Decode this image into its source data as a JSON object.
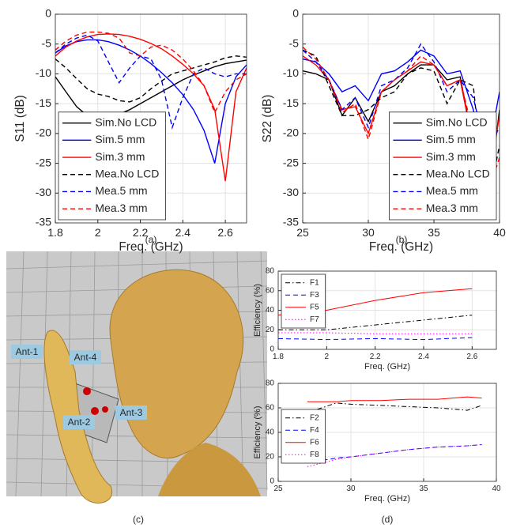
{
  "chart_data": [
    {
      "type": "line",
      "caption": "(a)",
      "xlabel": "Freq. (GHz)",
      "ylabel": "S11 (dB)",
      "x": [
        1.8,
        1.85,
        1.9,
        1.95,
        2.0,
        2.05,
        2.1,
        2.15,
        2.2,
        2.25,
        2.3,
        2.35,
        2.4,
        2.45,
        2.5,
        2.55,
        2.6,
        2.65,
        2.7
      ],
      "xlim": [
        1.8,
        2.7
      ],
      "xticks": [
        1.8,
        2,
        2.2,
        2.4,
        2.6
      ],
      "ylim": [
        -35,
        0
      ],
      "yticks": [
        -35,
        -30,
        -25,
        -20,
        -15,
        -10,
        -5,
        0
      ],
      "grid": true,
      "legend_loc": "lower left",
      "series": [
        {
          "name": "Sim.No LCD",
          "color": "#000000",
          "linestyle": "solid",
          "values": [
            -10.5,
            -13,
            -15.5,
            -17,
            -17.5,
            -17.3,
            -16.8,
            -16,
            -15,
            -14,
            -13,
            -12,
            -11,
            -10.2,
            -9.5,
            -8.8,
            -8.3,
            -8,
            -7.7
          ]
        },
        {
          "name": "Sim.5 mm",
          "color": "#0000ff",
          "linestyle": "solid",
          "values": [
            -6.5,
            -5.3,
            -4.6,
            -4.3,
            -4.3,
            -4.6,
            -5.2,
            -6,
            -7,
            -8.3,
            -9.8,
            -11.5,
            -13.5,
            -16,
            -19.5,
            -25,
            -15,
            -10.5,
            -8.5
          ]
        },
        {
          "name": "Sim.3 mm",
          "color": "#ff0000",
          "linestyle": "solid",
          "values": [
            -7,
            -5.5,
            -4.5,
            -3.8,
            -3.4,
            -3.3,
            -3.4,
            -3.7,
            -4.2,
            -4.9,
            -5.8,
            -7,
            -8.4,
            -10,
            -12,
            -16,
            -28,
            -13,
            -9
          ]
        },
        {
          "name": "Mea.No LCD",
          "color": "#000000",
          "linestyle": "dashed",
          "values": [
            -7.5,
            -9,
            -10.8,
            -12.5,
            -13.4,
            -13.8,
            -14.5,
            -14.7,
            -14,
            -12.5,
            -11.2,
            -10,
            -9.5,
            -9,
            -8.5,
            -8,
            -7.3,
            -7,
            -7.2
          ]
        },
        {
          "name": "Mea.5 mm",
          "color": "#0000ff",
          "linestyle": "dashed",
          "values": [
            -6.5,
            -5,
            -4,
            -3.5,
            -4.5,
            -8,
            -11.5,
            -9,
            -7,
            -7.5,
            -11,
            -19,
            -14,
            -10,
            -9,
            -10,
            -10.5,
            -10,
            -10
          ]
        },
        {
          "name": "Mea.3 mm",
          "color": "#ff0000",
          "linestyle": "dashed",
          "values": [
            -6,
            -4.5,
            -3.5,
            -3,
            -3,
            -3.2,
            -4,
            -6.5,
            -7,
            -5.5,
            -5.2,
            -6,
            -7.5,
            -9.5,
            -12,
            -16.5,
            -13,
            -11,
            -10
          ]
        }
      ]
    },
    {
      "type": "line",
      "caption": "(b)",
      "xlabel": "Freq. (GHz)",
      "ylabel": "S22 (dB)",
      "x": [
        25,
        26,
        27,
        28,
        29,
        30,
        31,
        32,
        33,
        34,
        35,
        36,
        37,
        38,
        39,
        40
      ],
      "xlim": [
        25,
        40
      ],
      "xticks": [
        25,
        30,
        35,
        40
      ],
      "ylim": [
        -35,
        0
      ],
      "yticks": [
        -35,
        -30,
        -25,
        -20,
        -15,
        -10,
        -5,
        0
      ],
      "grid": true,
      "legend_loc": "lower right",
      "series": [
        {
          "name": "Sim.No LCD",
          "color": "#000000",
          "linestyle": "solid",
          "values": [
            -9.5,
            -10,
            -11,
            -17,
            -14,
            -18,
            -13,
            -12,
            -10,
            -8.5,
            -8.5,
            -11,
            -10.5,
            -22,
            -34,
            -16
          ]
        },
        {
          "name": "Sim.5 mm",
          "color": "#0000ff",
          "linestyle": "solid",
          "values": [
            -7.5,
            -8,
            -10,
            -13,
            -12,
            -14.5,
            -10,
            -9.5,
            -8,
            -6,
            -7,
            -10,
            -9.5,
            -16,
            -25,
            -13
          ]
        },
        {
          "name": "Sim.3 mm",
          "color": "#ff0000",
          "linestyle": "solid",
          "values": [
            -7,
            -8.5,
            -11,
            -16,
            -15.5,
            -20,
            -13,
            -11,
            -9.5,
            -8,
            -8.5,
            -12,
            -11,
            -22,
            -30,
            -17
          ]
        },
        {
          "name": "Mea.No LCD",
          "color": "#000000",
          "linestyle": "dashed",
          "values": [
            -6,
            -7,
            -12,
            -17,
            -17,
            -16,
            -14,
            -13,
            -10,
            -9,
            -9.5,
            -15,
            -11,
            -12,
            -33,
            -22
          ]
        },
        {
          "name": "Mea.5 mm",
          "color": "#0000ff",
          "linestyle": "dashed",
          "values": [
            -6,
            -8,
            -11,
            -16,
            -14,
            -19,
            -12,
            -11,
            -9,
            -5,
            -8,
            -13,
            -11,
            -14,
            -23,
            -19
          ]
        },
        {
          "name": "Mea.3 mm",
          "color": "#ff0000",
          "linestyle": "dashed",
          "values": [
            -5.5,
            -7.5,
            -11,
            -16.5,
            -15,
            -21,
            -13,
            -11,
            -9.5,
            -7,
            -8.5,
            -12,
            -11,
            -20,
            -31,
            -24
          ]
        }
      ]
    },
    {
      "type": "line",
      "xlabel": "Freq. (GHz)",
      "ylabel": "Efficiency (%)",
      "x": [
        1.8,
        2,
        2.2,
        2.4,
        2.6
      ],
      "xlim": [
        1.8,
        2.7
      ],
      "xticks": [
        1.8,
        2,
        2.2,
        2.4,
        2.6
      ],
      "ylim": [
        0,
        80
      ],
      "yticks": [
        0,
        20,
        40,
        60,
        80
      ],
      "grid": true,
      "legend_loc": "upper left",
      "series": [
        {
          "name": "F1",
          "color": "#000000",
          "linestyle": "dashdot",
          "values": [
            20,
            20,
            25,
            30,
            35
          ]
        },
        {
          "name": "F3",
          "color": "#0000ff",
          "linestyle": "dashed",
          "values": [
            11,
            10,
            11,
            10,
            12
          ]
        },
        {
          "name": "F5",
          "color": "#ff0000",
          "linestyle": "solid",
          "values": [
            35,
            40,
            50,
            58,
            62
          ]
        },
        {
          "name": "F7",
          "color": "#ff00ff",
          "linestyle": "dotted",
          "values": [
            17,
            17,
            16,
            16,
            16
          ]
        }
      ]
    },
    {
      "type": "line",
      "caption": "(d)",
      "xlabel": "Freq. (GHz)",
      "ylabel": "Efficiency (%)",
      "x": [
        27,
        28,
        29,
        30,
        32,
        34,
        36,
        38,
        39
      ],
      "xlim": [
        25,
        40
      ],
      "xticks": [
        25,
        30,
        35,
        40
      ],
      "ylim": [
        0,
        80
      ],
      "yticks": [
        0,
        20,
        40,
        60,
        80
      ],
      "grid": true,
      "legend_loc": "center left",
      "series": [
        {
          "name": "F2",
          "color": "#000000",
          "linestyle": "dashdot",
          "values": [
            56,
            60,
            64,
            63,
            62,
            61,
            60,
            58,
            62
          ]
        },
        {
          "name": "F4",
          "color": "#0000ff",
          "linestyle": "dashed",
          "values": [
            15,
            17,
            19,
            20,
            23,
            26,
            28,
            29,
            30
          ]
        },
        {
          "name": "F6",
          "color": "#ff0000",
          "linestyle": "solid",
          "values": [
            65,
            65,
            65,
            66,
            66,
            67,
            67,
            69,
            68
          ]
        },
        {
          "name": "F8",
          "color": "#ff00ff",
          "linestyle": "dotted",
          "values": [
            12,
            15,
            18,
            20,
            23,
            26,
            28,
            29,
            30
          ]
        }
      ]
    }
  ],
  "figure": {
    "caption": "(c)",
    "labels": [
      "Ant-1",
      "Ant-4",
      "Ant-2",
      "Ant-3"
    ]
  }
}
